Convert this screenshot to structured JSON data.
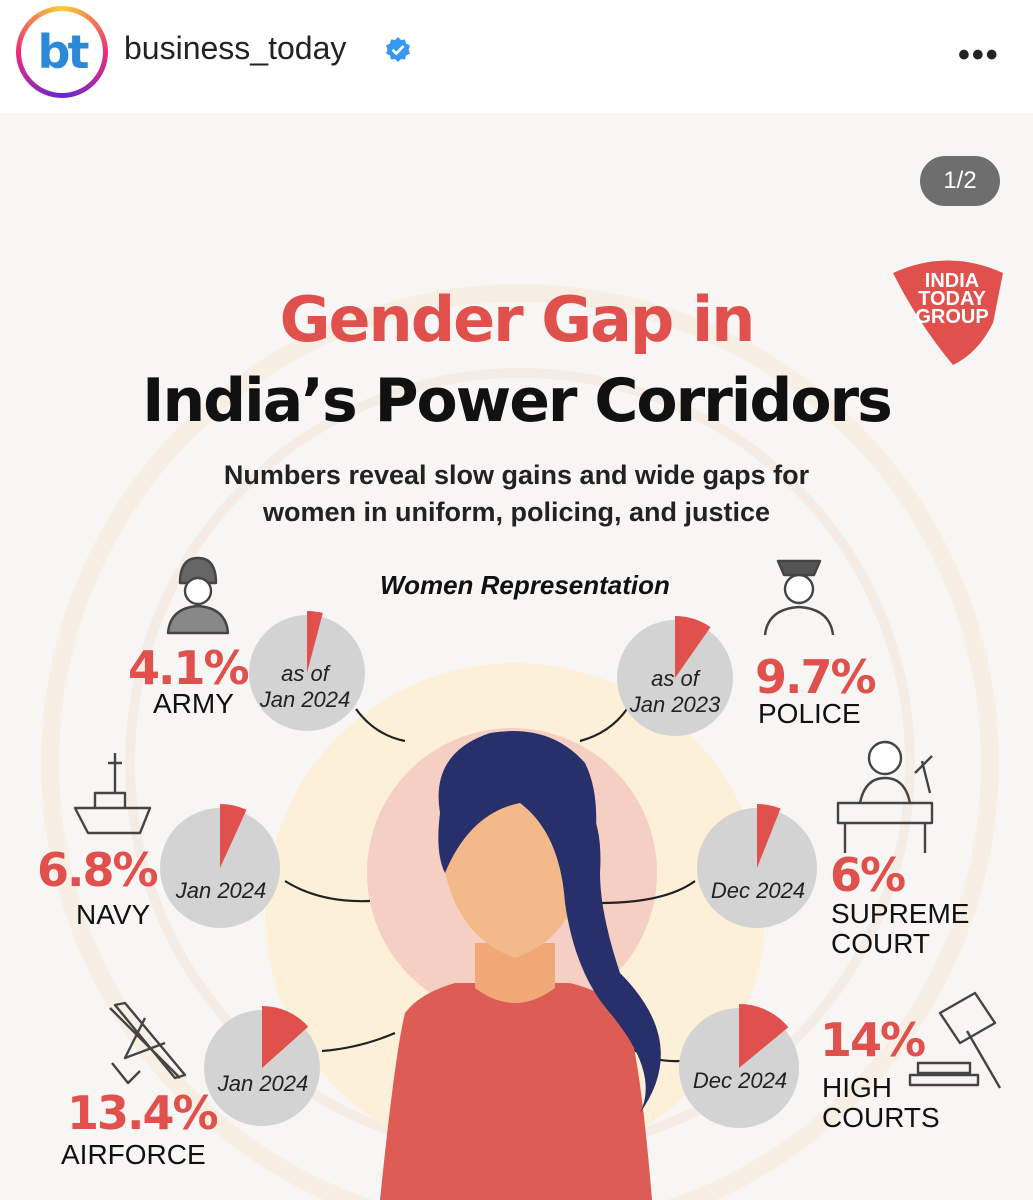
{
  "header": {
    "avatar_text": "bt",
    "username": "business_today",
    "more_label": "•••"
  },
  "post": {
    "counter": "1/2",
    "logo_lines": [
      "INDIA",
      "TODAY",
      "GROUP"
    ],
    "title_line1": "Gender Gap in",
    "title_line2": "India’s Power Corridors",
    "subtitle_line1": "Numbers reveal slow gains and wide gaps for",
    "subtitle_line2": "women in uniform, policing, and justice",
    "section_label": "Women Representation",
    "stats": [
      {
        "id": "army",
        "percent": "4.1%",
        "value": 4.1,
        "category": "ARMY",
        "date_line1": "as of",
        "date_line2": "Jan 2024",
        "icon": "soldier-icon"
      },
      {
        "id": "police",
        "percent": "9.7%",
        "value": 9.7,
        "category": "POLICE",
        "date_line1": "as of",
        "date_line2": "Jan 2023",
        "icon": "police-officer-icon"
      },
      {
        "id": "navy",
        "percent": "6.8%",
        "value": 6.8,
        "category": "NAVY",
        "date_line1": "",
        "date_line2": "Jan 2024",
        "icon": "ship-icon"
      },
      {
        "id": "supreme-court",
        "percent": "6%",
        "value": 6,
        "category_line1": "SUPREME",
        "category_line2": "COURT",
        "date_line1": "",
        "date_line2": "Dec 2024",
        "icon": "judge-icon"
      },
      {
        "id": "airforce",
        "percent": "13.4%",
        "value": 13.4,
        "category": "AIRFORCE",
        "date_line1": "",
        "date_line2": "Jan 2024",
        "icon": "fighter-jet-icon"
      },
      {
        "id": "high-courts",
        "percent": "14%",
        "value": 14,
        "category_line1": "HIGH",
        "category_line2": "COURTS",
        "date_line1": "",
        "date_line2": "Dec 2024",
        "icon": "gavel-icon"
      }
    ]
  },
  "colors": {
    "accent": "#e0504c",
    "pie_gray": "#d3d3d3",
    "hair": "#27306b",
    "skin": "#f3b98a",
    "shirt": "#dd5d56"
  }
}
